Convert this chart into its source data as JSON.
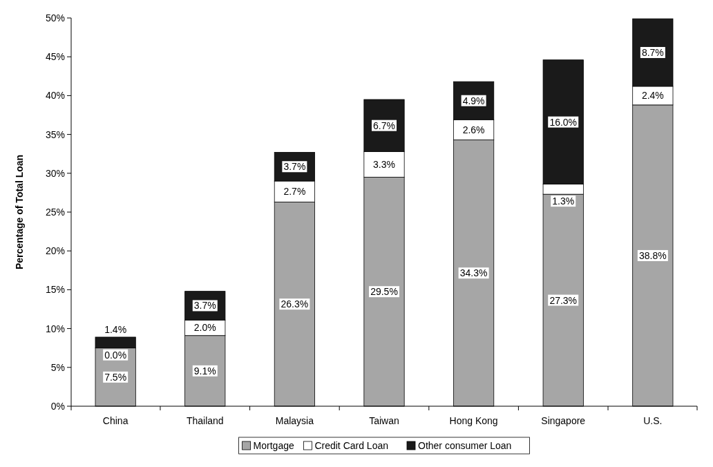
{
  "chart_data": {
    "type": "bar",
    "stacked": true,
    "ylabel": "Percentage of Total Loan",
    "categories": [
      "China",
      "Thailand",
      "Malaysia",
      "Taiwan",
      "Hong Kong",
      "Singapore",
      "U.S."
    ],
    "series": [
      {
        "name": "Mortgage",
        "color": "#a6a6a6",
        "values": [
          7.5,
          9.1,
          26.3,
          29.5,
          34.3,
          27.3,
          38.8
        ],
        "value_labels": [
          "7.5%",
          "9.1%",
          "26.3%",
          "29.5%",
          "34.3%",
          "27.3%",
          "38.8%"
        ]
      },
      {
        "name": "Credit Card Loan",
        "color": "#ffffff",
        "values": [
          0.0,
          2.0,
          2.7,
          3.3,
          2.6,
          1.3,
          2.4
        ],
        "value_labels": [
          "0.0%",
          "2.0%",
          "2.7%",
          "3.3%",
          "2.6%",
          "1.3%",
          "2.4%"
        ]
      },
      {
        "name": "Other consumer Loan",
        "color": "#1a1a1a",
        "values": [
          1.4,
          3.7,
          3.7,
          6.7,
          4.9,
          16.0,
          8.7
        ],
        "value_labels": [
          "1.4%",
          "3.7%",
          "3.7%",
          "6.7%",
          "4.9%",
          "16.0%",
          "8.7%"
        ]
      }
    ],
    "ylim": [
      0,
      50
    ],
    "yticks": [
      {
        "value": 0,
        "label": "0%"
      },
      {
        "value": 5,
        "label": "5%"
      },
      {
        "value": 10,
        "label": "10%"
      },
      {
        "value": 15,
        "label": "15%"
      },
      {
        "value": 20,
        "label": "20%"
      },
      {
        "value": 25,
        "label": "25%"
      },
      {
        "value": 30,
        "label": "30%"
      },
      {
        "value": 35,
        "label": "35%"
      },
      {
        "value": 40,
        "label": "40%"
      },
      {
        "value": 45,
        "label": "45%"
      },
      {
        "value": 50,
        "label": "50%"
      }
    ],
    "grid": false,
    "legend": "bottom"
  }
}
